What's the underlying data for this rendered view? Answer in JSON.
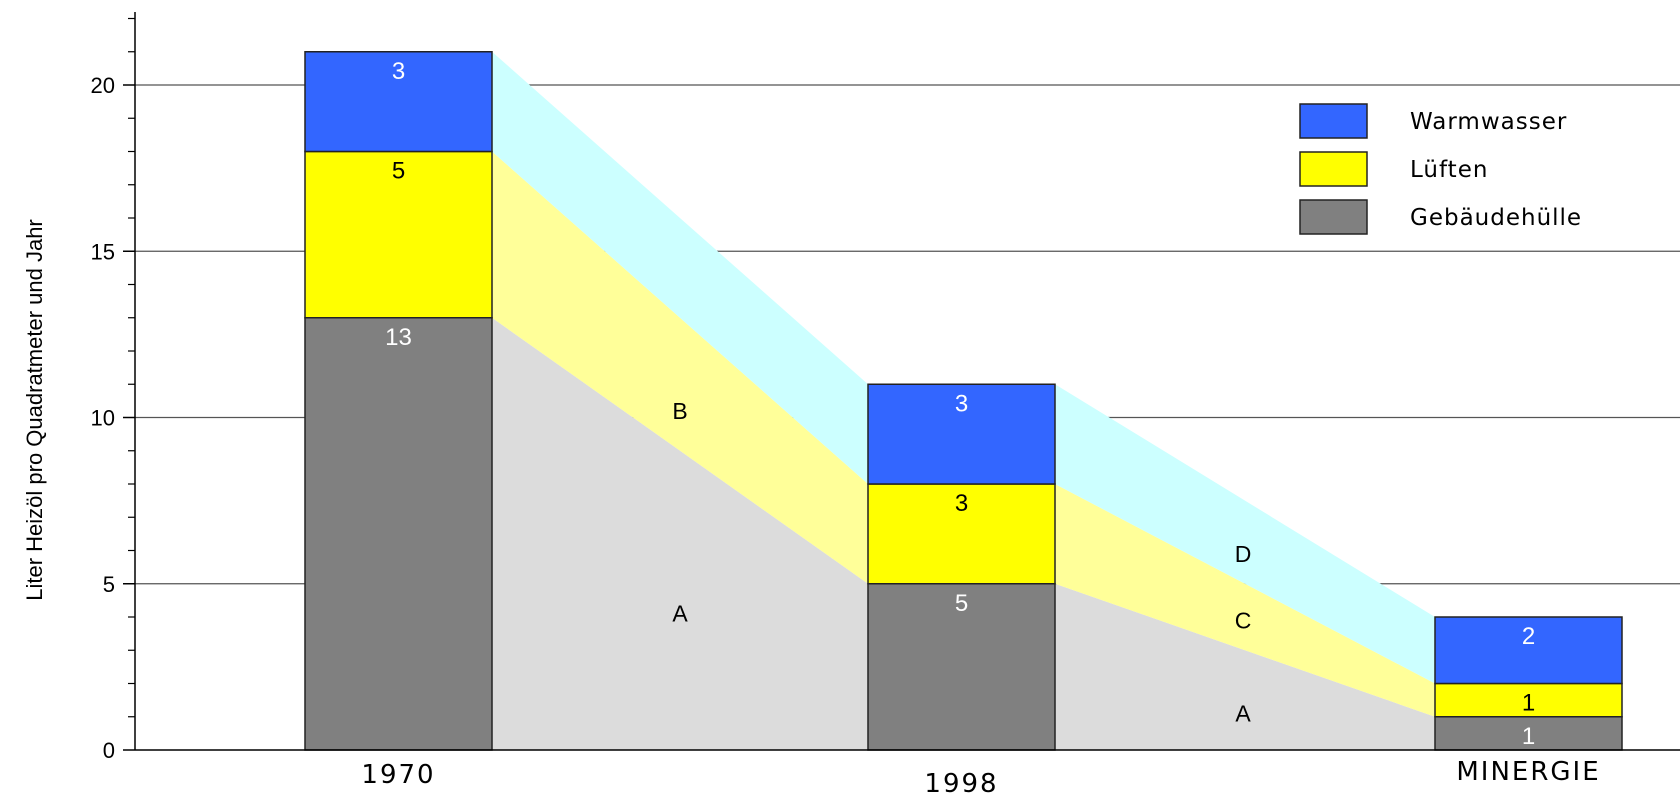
{
  "chart_data": {
    "type": "bar",
    "stacked": true,
    "categories": [
      "1970",
      "1998",
      "MINERGIE"
    ],
    "series": [
      {
        "name": "Gebäudehülle",
        "values": [
          13,
          5,
          1
        ],
        "color": "#808080",
        "band_color": "#dcdcdc",
        "label_color": "#ffffff"
      },
      {
        "name": "Lüften",
        "values": [
          5,
          3,
          1
        ],
        "color": "#ffff00",
        "band_color": "#ffff99",
        "label_color": "#000000"
      },
      {
        "name": "Warmwasser",
        "values": [
          3,
          3,
          2
        ],
        "color": "#3366ff",
        "band_color": "#ccffff",
        "label_color": "#ffffff"
      }
    ],
    "ylabel": "Liter Heizöl pro Quadratmeter und Jahr",
    "xlabel": "",
    "ylim": [
      0,
      22
    ],
    "yticks": [
      0,
      5,
      10,
      15,
      20
    ],
    "grid": true,
    "legend_position": "top-right",
    "legend_order": [
      "Warmwasser",
      "Lüften",
      "Gebäudehülle"
    ],
    "annotations": [
      {
        "text": "B",
        "x": 0.5,
        "y": 10.2
      },
      {
        "text": "A",
        "x": 0.5,
        "y": 4.1
      },
      {
        "text": "D",
        "x": 1.5,
        "y": 5.9
      },
      {
        "text": "C",
        "x": 1.5,
        "y": 3.9
      },
      {
        "text": "A",
        "x": 1.5,
        "y": 1.1
      }
    ]
  }
}
